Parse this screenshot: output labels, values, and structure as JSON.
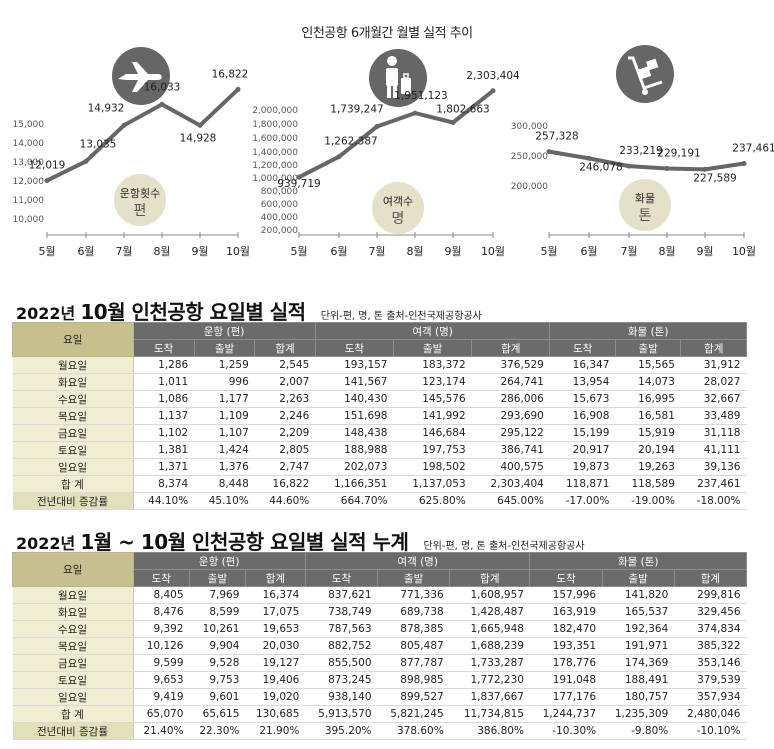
{
  "header": {
    "caption": "인천공항 6개월간 월별 실적 추이"
  },
  "chart_data": [
    {
      "type": "line",
      "x": [
        "5월",
        "6월",
        "7월",
        "8월",
        "9월",
        "10월"
      ],
      "series": [
        {
          "values": [
            12019,
            13035,
            14932,
            16033,
            14928,
            16822
          ]
        }
      ],
      "value_labels": [
        "12,019",
        "13,035",
        "14,932",
        "16,033",
        "14,928",
        "16,822"
      ],
      "yticks": [
        "10,000",
        "11,000",
        "12,000",
        "13,000",
        "14,000",
        "15,000"
      ],
      "ylim": [
        10000,
        15000
      ],
      "badge": {
        "label": "운항횟수",
        "unit": "편"
      },
      "icon": "airplane-icon",
      "grid": false
    },
    {
      "type": "line",
      "x": [
        "5월",
        "6월",
        "7월",
        "8월",
        "9월",
        "10월"
      ],
      "series": [
        {
          "values": [
            939719,
            1262387,
            1739247,
            1951123,
            1802663,
            2303404
          ]
        }
      ],
      "value_labels": [
        "939,719",
        "1,262,387",
        "1,739,247",
        "1,951,123",
        "1,802,663",
        "2,303,404"
      ],
      "yticks": [
        "200,000",
        "400,000",
        "600,000",
        "800,000",
        "1,000,000",
        "1,200,000",
        "1,400,000",
        "1,600,000",
        "1,800,000",
        "2,000,000"
      ],
      "ylim": [
        200000,
        2000000
      ],
      "badge": {
        "label": "여객수",
        "unit": "명"
      },
      "icon": "traveler-luggage-icon",
      "grid": false
    },
    {
      "type": "line",
      "x": [
        "5월",
        "6월",
        "7월",
        "8월",
        "9월",
        "10월"
      ],
      "series": [
        {
          "values": [
            257328,
            246078,
            233219,
            229191,
            227589,
            237461
          ]
        }
      ],
      "value_labels": [
        "257,328",
        "246,078",
        "233,219",
        "229,191",
        "227,589",
        "237,461"
      ],
      "yticks": [
        "200,000",
        "250,000",
        "300,000"
      ],
      "ylim": [
        200000,
        300000
      ],
      "badge": {
        "label": "화물",
        "unit": "톤"
      },
      "icon": "cargo-trolley-icon",
      "grid": false
    }
  ],
  "table1": {
    "year": "2022년",
    "title": "10월 인천공항 요일별 실적",
    "note": "단위-편, 명, 톤   출처-인천국제공항공사",
    "row_header": "요일",
    "groups": [
      "운항 (편)",
      "여객 (명)",
      "화물 (톤)"
    ],
    "subheaders": [
      "도착",
      "출발",
      "합계",
      "도착",
      "출발",
      "합계",
      "도착",
      "출발",
      "합계"
    ],
    "rows": [
      {
        "label": "월요일",
        "cells": [
          "1,286",
          "1,259",
          "2,545",
          "193,157",
          "183,372",
          "376,529",
          "16,347",
          "15,565",
          "31,912"
        ]
      },
      {
        "label": "화요일",
        "cells": [
          "1,011",
          "996",
          "2,007",
          "141,567",
          "123,174",
          "264,741",
          "13,954",
          "14,073",
          "28,027"
        ]
      },
      {
        "label": "수요일",
        "cells": [
          "1,086",
          "1,177",
          "2,263",
          "140,430",
          "145,576",
          "286,006",
          "15,673",
          "16,995",
          "32,667"
        ]
      },
      {
        "label": "목요일",
        "cells": [
          "1,137",
          "1,109",
          "2,246",
          "151,698",
          "141,992",
          "293,690",
          "16,908",
          "16,581",
          "33,489"
        ]
      },
      {
        "label": "금요일",
        "cells": [
          "1,102",
          "1,107",
          "2,209",
          "148,438",
          "146,684",
          "295,122",
          "15,199",
          "15,919",
          "31,118"
        ]
      },
      {
        "label": "토요일",
        "cells": [
          "1,381",
          "1,424",
          "2,805",
          "188,988",
          "197,753",
          "386,741",
          "20,917",
          "20,194",
          "41,111"
        ]
      },
      {
        "label": "일요일",
        "cells": [
          "1,371",
          "1,376",
          "2,747",
          "202,073",
          "198,502",
          "400,575",
          "19,873",
          "19,263",
          "39,136"
        ]
      },
      {
        "label": "합 계",
        "cells": [
          "8,374",
          "8,448",
          "16,822",
          "1,166,351",
          "1,137,053",
          "2,303,404",
          "118,871",
          "118,589",
          "237,461"
        ]
      },
      {
        "label": "전년대비 증감률",
        "cells": [
          "44.10%",
          "45.10%",
          "44.60%",
          "664.70%",
          "625.80%",
          "645.00%",
          "-17.00%",
          "-19.00%",
          "-18.00%"
        ]
      }
    ]
  },
  "table2": {
    "year": "2022년",
    "title": "1월 ~ 10월 인천공항 요일별 실적 누계",
    "note": "단위-편, 명, 톤   출처-인천국제공항공사",
    "row_header": "요일",
    "groups": [
      "운항 (편)",
      "여객 (명)",
      "화물 (톤)"
    ],
    "subheaders": [
      "도착",
      "출발",
      "합계",
      "도착",
      "출발",
      "합계",
      "도착",
      "출발",
      "합계"
    ],
    "rows": [
      {
        "label": "월요일",
        "cells": [
          "8,405",
          "7,969",
          "16,374",
          "837,621",
          "771,336",
          "1,608,957",
          "157,996",
          "141,820",
          "299,816"
        ]
      },
      {
        "label": "화요일",
        "cells": [
          "8,476",
          "8,599",
          "17,075",
          "738,749",
          "689,738",
          "1,428,487",
          "163,919",
          "165,537",
          "329,456"
        ]
      },
      {
        "label": "수요일",
        "cells": [
          "9,392",
          "10,261",
          "19,653",
          "787,563",
          "878,385",
          "1,665,948",
          "182,470",
          "192,364",
          "374,834"
        ]
      },
      {
        "label": "목요일",
        "cells": [
          "10,126",
          "9,904",
          "20,030",
          "882,752",
          "805,487",
          "1,688,239",
          "193,351",
          "191,971",
          "385,322"
        ]
      },
      {
        "label": "금요일",
        "cells": [
          "9,599",
          "9,528",
          "19,127",
          "855,500",
          "877,787",
          "1,733,287",
          "178,776",
          "174,369",
          "353,146"
        ]
      },
      {
        "label": "토요일",
        "cells": [
          "9,653",
          "9,753",
          "19,406",
          "873,245",
          "898,985",
          "1,772,230",
          "191,048",
          "188,491",
          "379,539"
        ]
      },
      {
        "label": "일요일",
        "cells": [
          "9,419",
          "9,601",
          "19,020",
          "938,140",
          "899,527",
          "1,837,667",
          "177,176",
          "180,757",
          "357,934"
        ]
      },
      {
        "label": "합 계",
        "cells": [
          "65,070",
          "65,615",
          "130,685",
          "5,913,570",
          "5,821,245",
          "11,734,815",
          "1,244,737",
          "1,235,309",
          "2,480,046"
        ]
      },
      {
        "label": "전년대비 증감률",
        "cells": [
          "21.40%",
          "22.30%",
          "21.90%",
          "395.20%",
          "378.60%",
          "386.80%",
          "-10.30%",
          "-9.80%",
          "-10.10%"
        ]
      }
    ]
  }
}
